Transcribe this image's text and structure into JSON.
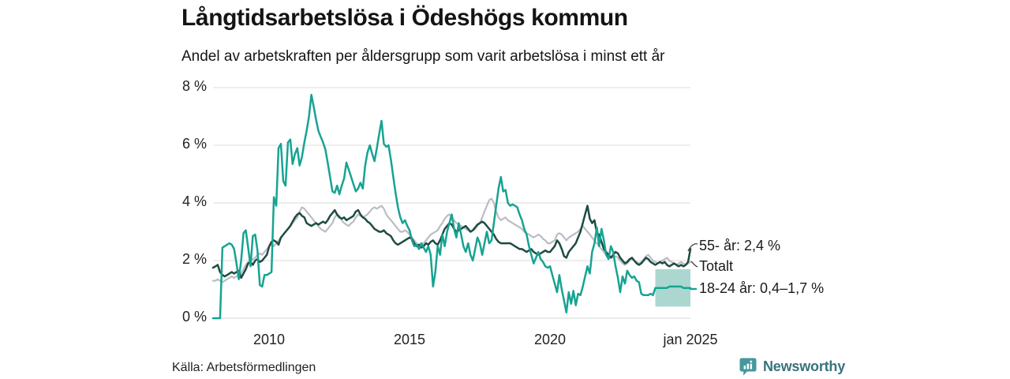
{
  "header": {
    "title": "Långtidsarbetslösa i Ödeshögs kommun",
    "subtitle": "Andel av arbetskraften per åldersgrupp som varit arbetslösa i minst ett år"
  },
  "footer": {
    "source": "Källa: Arbetsförmedlingen",
    "brand": "Newsworthy"
  },
  "chart_data": {
    "type": "line",
    "title": "Långtidsarbetslösa i Ödeshögs kommun",
    "subtitle": "Andel av arbetskraften per åldersgrupp som varit arbetslösa i minst ett år",
    "x_start": "2008-01",
    "x_end": "2025-01",
    "frequency": "monthly",
    "ylim": [
      0,
      8
    ],
    "grid": "horizontal",
    "yticks": [
      "8 %",
      "6 %",
      "4 %",
      "2 %",
      "0 %"
    ],
    "xticks": [
      "2010",
      "2015",
      "2020",
      "jan 2025"
    ],
    "series": [
      {
        "name": "Totalt",
        "color": "#babdc4",
        "values": [
          1.3,
          1.3,
          1.35,
          1.3,
          1.25,
          1.3,
          1.35,
          1.4,
          1.45,
          1.4,
          1.45,
          1.5,
          1.55,
          1.7,
          1.85,
          1.95,
          2.0,
          2.05,
          2.1,
          2.2,
          2.25,
          2.2,
          2.3,
          2.4,
          2.5,
          2.55,
          2.5,
          2.6,
          2.7,
          2.8,
          2.9,
          3.0,
          3.1,
          3.2,
          3.3,
          3.4,
          3.5,
          3.7,
          3.85,
          3.8,
          3.7,
          3.6,
          3.5,
          3.4,
          3.3,
          3.2,
          3.1,
          3.05,
          3.0,
          3.1,
          3.2,
          3.3,
          3.5,
          3.6,
          3.55,
          3.4,
          3.3,
          3.25,
          3.2,
          3.3,
          3.35,
          3.5,
          3.6,
          3.55,
          3.5,
          3.55,
          3.6,
          3.7,
          3.8,
          3.85,
          3.8,
          3.85,
          3.9,
          3.8,
          3.6,
          3.5,
          3.4,
          3.3,
          3.2,
          3.1,
          3.0,
          3.0,
          3.05,
          3.0,
          2.9,
          2.8,
          2.7,
          2.6,
          2.5,
          2.55,
          2.6,
          2.7,
          2.8,
          2.9,
          2.95,
          3.0,
          3.05,
          3.2,
          3.3,
          3.45,
          3.55,
          3.6,
          3.5,
          3.4,
          3.3,
          3.25,
          3.2,
          3.15,
          3.1,
          3.05,
          3.0,
          3.05,
          3.1,
          3.2,
          3.3,
          3.5,
          3.7,
          3.9,
          4.1,
          4.15,
          4.0,
          3.7,
          3.5,
          3.4,
          3.45,
          3.5,
          3.4,
          3.35,
          3.3,
          3.25,
          3.2,
          3.15,
          3.1,
          3.0,
          2.95,
          2.9,
          2.85,
          2.8,
          2.85,
          2.9,
          2.85,
          2.75,
          2.7,
          2.6,
          2.6,
          2.65,
          2.7,
          2.9,
          2.95,
          2.9,
          2.8,
          2.7,
          2.8,
          2.85,
          2.9,
          2.95,
          3.0,
          3.1,
          3.2,
          3.1,
          3.0,
          2.9,
          2.8,
          2.7,
          2.6,
          2.5,
          2.4,
          2.3,
          2.2,
          2.15,
          2.1,
          2.1,
          2.15,
          2.1,
          2.0,
          1.9,
          1.85,
          1.9,
          2.0,
          2.05,
          2.0,
          1.95,
          1.9,
          1.95,
          2.05,
          2.15,
          2.2,
          2.1,
          2.0,
          1.95,
          1.9,
          1.95,
          2.0,
          2.05,
          2.1,
          2.0,
          1.95,
          1.9,
          1.85,
          1.9,
          1.95,
          1.9,
          1.85,
          1.9,
          1.95
        ]
      },
      {
        "name": "55- år",
        "color": "#1e4b42",
        "values": [
          1.75,
          1.8,
          1.85,
          1.6,
          1.5,
          1.45,
          1.5,
          1.55,
          1.6,
          1.55,
          1.6,
          1.65,
          1.4,
          1.55,
          1.7,
          1.9,
          1.95,
          1.85,
          2.0,
          2.05,
          1.95,
          2.0,
          2.1,
          2.2,
          2.5,
          2.65,
          2.7,
          2.65,
          2.55,
          2.8,
          2.9,
          3.0,
          3.1,
          3.2,
          3.35,
          3.5,
          3.6,
          3.65,
          3.55,
          3.5,
          3.3,
          3.25,
          3.2,
          3.25,
          3.3,
          3.25,
          3.3,
          3.35,
          3.3,
          3.4,
          3.55,
          3.65,
          3.75,
          3.6,
          3.5,
          3.45,
          3.5,
          3.4,
          3.45,
          3.5,
          3.55,
          3.7,
          3.75,
          3.6,
          3.5,
          3.45,
          3.35,
          3.3,
          3.2,
          3.1,
          3.05,
          3.0,
          3.0,
          3.05,
          2.95,
          2.9,
          2.85,
          2.7,
          2.6,
          2.55,
          2.6,
          2.65,
          2.7,
          2.75,
          2.8,
          2.75,
          2.6,
          2.5,
          2.55,
          2.45,
          2.5,
          2.6,
          2.55,
          2.65,
          2.7,
          2.6,
          2.55,
          2.7,
          2.9,
          3.1,
          3.2,
          3.3,
          3.25,
          3.1,
          3.0,
          3.05,
          3.1,
          3.15,
          3.2,
          3.1,
          3.0,
          3.05,
          3.15,
          3.25,
          3.3,
          3.35,
          3.3,
          3.2,
          3.1,
          3.0,
          2.9,
          2.75,
          2.65,
          2.6,
          2.6,
          2.6,
          2.6,
          2.6,
          2.55,
          2.5,
          2.45,
          2.4,
          2.4,
          2.35,
          2.3,
          2.35,
          2.4,
          2.3,
          2.25,
          2.2,
          2.25,
          2.3,
          2.35,
          2.3,
          2.3,
          2.4,
          2.5,
          2.7,
          2.6,
          2.4,
          2.15,
          2.1,
          2.3,
          2.4,
          2.5,
          2.6,
          2.8,
          3.0,
          3.3,
          3.6,
          3.9,
          3.45,
          3.3,
          3.4,
          2.95,
          2.9,
          2.65,
          2.4,
          2.3,
          2.2,
          2.1,
          2.2,
          2.3,
          2.25,
          2.1,
          2.0,
          1.9,
          1.95,
          2.05,
          2.1,
          2.0,
          1.9,
          1.85,
          1.9,
          2.0,
          2.1,
          2.05,
          1.95,
          1.9,
          1.85,
          1.9,
          1.95,
          1.9,
          1.95,
          1.85,
          1.8,
          1.85,
          1.9,
          1.85,
          1.8,
          1.85,
          1.8,
          1.85,
          1.95,
          2.4
        ]
      },
      {
        "name": "18-24 år",
        "color": "#17a392",
        "values": [
          0,
          0,
          0,
          0,
          2.45,
          2.5,
          2.55,
          2.6,
          2.55,
          2.4,
          1.9,
          1.35,
          2.0,
          2.95,
          3.05,
          2.45,
          1.8,
          2.85,
          2.9,
          2.35,
          1.15,
          1.1,
          1.5,
          1.5,
          1.55,
          1.6,
          4.2,
          3.9,
          5.9,
          6.05,
          4.75,
          4.6,
          6.1,
          6.2,
          5.35,
          5.7,
          5.9,
          5.3,
          5.6,
          6.1,
          6.5,
          7.0,
          7.75,
          7.35,
          6.9,
          6.5,
          6.3,
          6.1,
          5.85,
          5.4,
          4.9,
          4.4,
          4.35,
          4.6,
          4.3,
          4.6,
          4.85,
          5.4,
          5.15,
          4.9,
          4.65,
          4.4,
          4.5,
          4.7,
          4.5,
          5.3,
          5.75,
          6.0,
          5.7,
          5.45,
          5.9,
          6.4,
          6.85,
          6.05,
          5.95,
          6.0,
          5.5,
          4.9,
          4.35,
          3.85,
          3.5,
          3.3,
          3.4,
          3.2,
          3.05,
          2.7,
          2.5,
          2.55,
          2.4,
          2.6,
          2.45,
          2.3,
          2.5,
          2.2,
          1.1,
          1.6,
          2.5,
          2.2,
          2.9,
          2.5,
          3.0,
          3.3,
          3.6,
          3.1,
          2.8,
          3.3,
          2.9,
          2.5,
          2.3,
          2.6,
          2.2,
          2.0,
          2.4,
          2.8,
          2.6,
          2.2,
          2.6,
          3.0,
          2.6,
          2.7,
          3.3,
          3.9,
          4.5,
          4.9,
          4.4,
          4.45,
          4.0,
          3.9,
          3.95,
          3.9,
          3.85,
          3.6,
          3.4,
          3.1,
          2.9,
          2.5,
          2.2,
          1.9,
          2.1,
          2.3,
          2.05,
          1.95,
          1.8,
          1.75,
          1.8,
          1.5,
          1.2,
          0.9,
          1.5,
          1.0,
          0.6,
          0.2,
          0.9,
          0.5,
          0.95,
          0.45,
          0.85,
          0.8,
          1.1,
          1.45,
          1.8,
          1.55,
          2.3,
          2.6,
          3.15,
          2.5,
          3.1,
          2.7,
          2.2,
          2.05,
          2.5,
          2.3,
          1.8,
          1.4,
          0.9,
          1.45,
          1.2,
          1.65,
          1.5,
          1.4,
          1.45,
          1.3,
          1.25,
          0.85,
          0.8,
          0.8,
          0.8,
          0.85,
          0.8,
          1.05,
          1.05,
          1.05,
          1.05,
          1.05,
          1.05,
          1.1,
          1.1,
          1.1,
          1.1,
          1.1,
          1.1,
          1.05,
          1.05,
          1.05,
          1.05
        ]
      }
    ],
    "uncertainty_band": {
      "series": "18-24 år",
      "start_index": 189,
      "low": 0.4,
      "high": 1.7,
      "color": "#abd7d0"
    },
    "annotations": [
      {
        "label": "55- år: 2,4 %",
        "series": "55- år"
      },
      {
        "label": "Totalt",
        "series": "Totalt"
      },
      {
        "label": "18-24 år: 0,4–1,7 %",
        "series": "18-24 år"
      }
    ]
  }
}
